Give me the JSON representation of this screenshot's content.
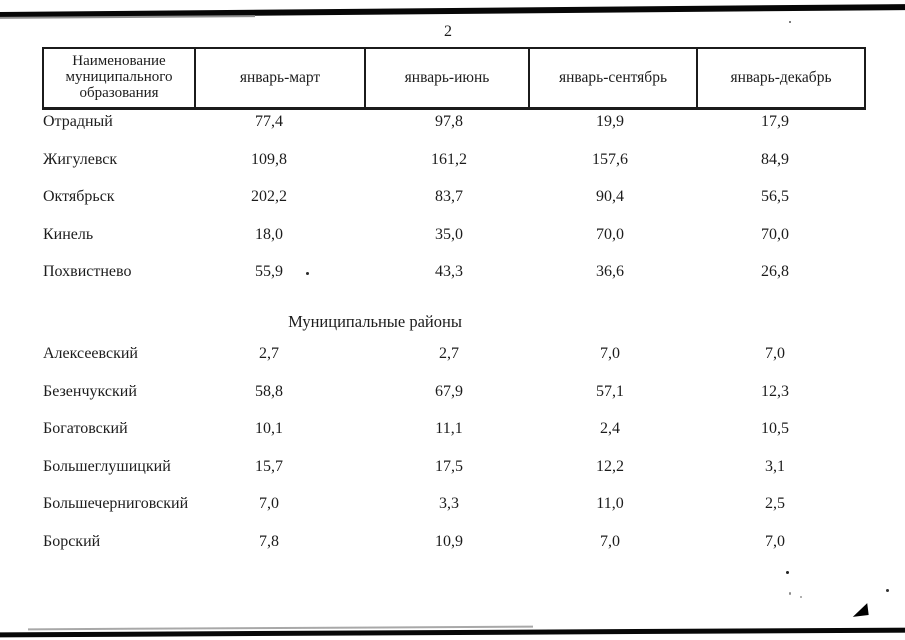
{
  "page": {
    "number": "2"
  },
  "colors": {
    "ink": "#1c1c1c",
    "paper": "#ffffff"
  },
  "table": {
    "headers": [
      "Наименование муниципального образования",
      "январь-март",
      "январь-июнь",
      "январь-сентябрь",
      "январь-декабрь"
    ],
    "sections": [
      {
        "title": "",
        "rows": [
          {
            "name": "Отрадный",
            "values": [
              "77,4",
              "97,8",
              "19,9",
              "17,9"
            ]
          },
          {
            "name": "Жигулевск",
            "values": [
              "109,8",
              "161,2",
              "157,6",
              "84,9"
            ]
          },
          {
            "name": "Октябрьск",
            "values": [
              "202,2",
              "83,7",
              "90,4",
              "56,5"
            ]
          },
          {
            "name": "Кинель",
            "values": [
              "18,0",
              "35,0",
              "70,0",
              "70,0"
            ]
          },
          {
            "name": "Похвистнево",
            "values": [
              "55,9",
              "43,3",
              "36,6",
              "26,8"
            ]
          }
        ]
      },
      {
        "title": "Муниципальные районы",
        "rows": [
          {
            "name": "Алексеевский",
            "values": [
              "2,7",
              "2,7",
              "7,0",
              "7,0"
            ]
          },
          {
            "name": "Безенчукский",
            "values": [
              "58,8",
              "67,9",
              "57,1",
              "12,3"
            ]
          },
          {
            "name": "Богатовский",
            "values": [
              "10,1",
              "11,1",
              "2,4",
              "10,5"
            ]
          },
          {
            "name": "Большеглушицкий",
            "values": [
              "15,7",
              "17,5",
              "12,2",
              "3,1"
            ]
          },
          {
            "name": "Большечерниговский",
            "values": [
              "7,0",
              "3,3",
              "11,0",
              "2,5"
            ]
          },
          {
            "name": "Борский",
            "values": [
              "7,8",
              "10,9",
              "7,0",
              "7,0"
            ]
          }
        ]
      }
    ]
  }
}
